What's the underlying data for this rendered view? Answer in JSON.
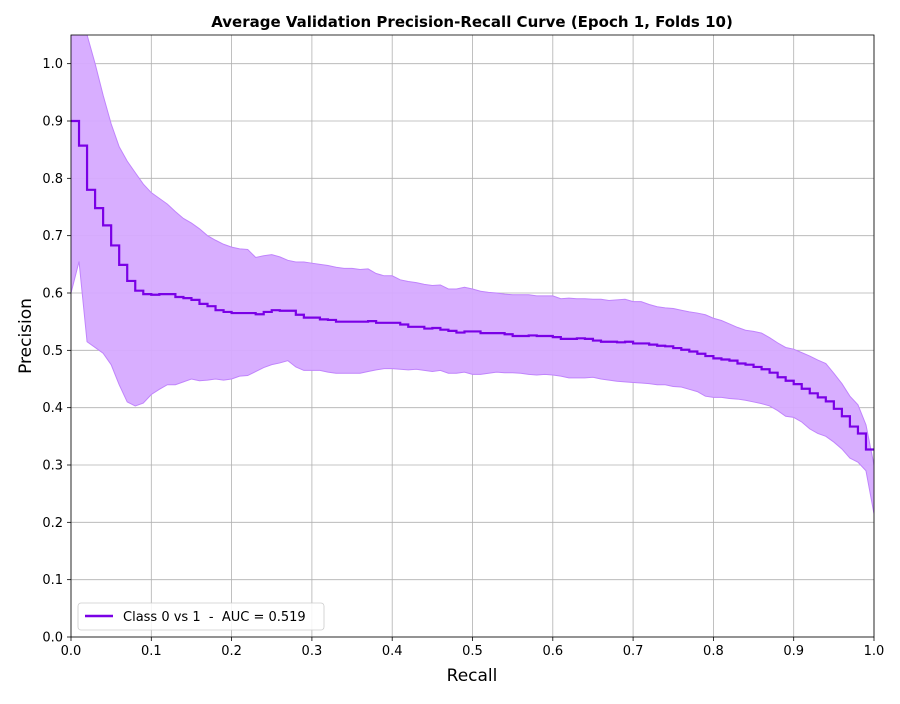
{
  "chart_data": {
    "type": "line",
    "title": "Average Validation Precision-Recall Curve (Epoch 1, Folds 10)",
    "xlabel": "Recall",
    "ylabel": "Precision",
    "xlim": [
      0.0,
      1.0
    ],
    "ylim": [
      0.0,
      1.05
    ],
    "xticks": [
      "0.0",
      "0.1",
      "0.2",
      "0.3",
      "0.4",
      "0.5",
      "0.6",
      "0.7",
      "0.8",
      "0.9",
      "1.0"
    ],
    "yticks": [
      "0.0",
      "0.1",
      "0.2",
      "0.3",
      "0.4",
      "0.5",
      "0.6",
      "0.7",
      "0.8",
      "0.9",
      "1.0"
    ],
    "grid": true,
    "legend_position": "lower-left",
    "series": [
      {
        "name": "Class 0 vs 1  -  AUC = 0.519",
        "color": "#7a00e6",
        "band_color": "#d6aaff",
        "band_edge_color": "#c084fc",
        "x": [
          0.0,
          0.01,
          0.02,
          0.03,
          0.04,
          0.05,
          0.06,
          0.07,
          0.08,
          0.09,
          0.1,
          0.11,
          0.12,
          0.13,
          0.14,
          0.15,
          0.16,
          0.17,
          0.18,
          0.19,
          0.2,
          0.21,
          0.22,
          0.23,
          0.24,
          0.25,
          0.26,
          0.27,
          0.28,
          0.29,
          0.3,
          0.31,
          0.32,
          0.33,
          0.34,
          0.35,
          0.36,
          0.37,
          0.38,
          0.39,
          0.4,
          0.41,
          0.42,
          0.43,
          0.44,
          0.45,
          0.46,
          0.47,
          0.48,
          0.49,
          0.5,
          0.51,
          0.52,
          0.53,
          0.54,
          0.55,
          0.56,
          0.57,
          0.58,
          0.59,
          0.6,
          0.61,
          0.62,
          0.63,
          0.64,
          0.65,
          0.66,
          0.67,
          0.68,
          0.69,
          0.7,
          0.71,
          0.72,
          0.73,
          0.74,
          0.75,
          0.76,
          0.77,
          0.78,
          0.79,
          0.8,
          0.81,
          0.82,
          0.83,
          0.84,
          0.85,
          0.86,
          0.87,
          0.88,
          0.89,
          0.9,
          0.91,
          0.92,
          0.93,
          0.94,
          0.95,
          0.96,
          0.97,
          0.98,
          0.99,
          1.0
        ],
        "y": [
          0.9,
          0.857,
          0.78,
          0.748,
          0.718,
          0.683,
          0.649,
          0.621,
          0.604,
          0.598,
          0.597,
          0.598,
          0.598,
          0.593,
          0.591,
          0.588,
          0.581,
          0.577,
          0.57,
          0.567,
          0.565,
          0.565,
          0.565,
          0.563,
          0.567,
          0.57,
          0.569,
          0.569,
          0.562,
          0.557,
          0.557,
          0.554,
          0.553,
          0.55,
          0.55,
          0.55,
          0.55,
          0.551,
          0.548,
          0.548,
          0.548,
          0.545,
          0.541,
          0.541,
          0.538,
          0.539,
          0.536,
          0.534,
          0.531,
          0.533,
          0.533,
          0.53,
          0.53,
          0.53,
          0.528,
          0.525,
          0.525,
          0.526,
          0.525,
          0.525,
          0.523,
          0.52,
          0.52,
          0.521,
          0.52,
          0.517,
          0.515,
          0.515,
          0.514,
          0.515,
          0.512,
          0.512,
          0.51,
          0.508,
          0.507,
          0.504,
          0.501,
          0.498,
          0.494,
          0.49,
          0.486,
          0.484,
          0.482,
          0.477,
          0.475,
          0.471,
          0.467,
          0.461,
          0.453,
          0.447,
          0.441,
          0.433,
          0.425,
          0.418,
          0.411,
          0.398,
          0.385,
          0.367,
          0.355,
          0.327,
          0.327
        ],
        "upper": [
          1.15,
          1.1,
          1.05,
          1.0,
          0.945,
          0.895,
          0.855,
          0.83,
          0.81,
          0.79,
          0.775,
          0.765,
          0.755,
          0.742,
          0.73,
          0.722,
          0.712,
          0.7,
          0.692,
          0.685,
          0.68,
          0.677,
          0.676,
          0.662,
          0.665,
          0.667,
          0.663,
          0.657,
          0.654,
          0.654,
          0.652,
          0.65,
          0.648,
          0.645,
          0.643,
          0.643,
          0.641,
          0.642,
          0.634,
          0.63,
          0.63,
          0.623,
          0.62,
          0.618,
          0.615,
          0.613,
          0.614,
          0.607,
          0.607,
          0.61,
          0.607,
          0.603,
          0.601,
          0.6,
          0.598,
          0.597,
          0.597,
          0.597,
          0.595,
          0.595,
          0.595,
          0.59,
          0.591,
          0.59,
          0.59,
          0.589,
          0.589,
          0.587,
          0.588,
          0.589,
          0.585,
          0.585,
          0.58,
          0.576,
          0.574,
          0.573,
          0.57,
          0.567,
          0.565,
          0.562,
          0.556,
          0.552,
          0.546,
          0.54,
          0.535,
          0.533,
          0.53,
          0.522,
          0.513,
          0.505,
          0.502,
          0.496,
          0.49,
          0.483,
          0.477,
          0.46,
          0.442,
          0.42,
          0.405,
          0.37,
          0.3
        ],
        "lower": [
          0.6,
          0.655,
          0.515,
          0.505,
          0.495,
          0.475,
          0.44,
          0.41,
          0.403,
          0.408,
          0.423,
          0.432,
          0.44,
          0.44,
          0.445,
          0.45,
          0.447,
          0.448,
          0.45,
          0.448,
          0.45,
          0.455,
          0.456,
          0.463,
          0.47,
          0.475,
          0.478,
          0.482,
          0.471,
          0.465,
          0.465,
          0.465,
          0.462,
          0.46,
          0.46,
          0.46,
          0.46,
          0.463,
          0.466,
          0.468,
          0.468,
          0.467,
          0.466,
          0.467,
          0.465,
          0.463,
          0.465,
          0.46,
          0.46,
          0.462,
          0.458,
          0.458,
          0.46,
          0.462,
          0.461,
          0.461,
          0.46,
          0.458,
          0.457,
          0.458,
          0.457,
          0.455,
          0.452,
          0.452,
          0.452,
          0.453,
          0.45,
          0.448,
          0.446,
          0.445,
          0.444,
          0.443,
          0.442,
          0.44,
          0.44,
          0.437,
          0.436,
          0.432,
          0.428,
          0.42,
          0.418,
          0.418,
          0.416,
          0.415,
          0.413,
          0.41,
          0.407,
          0.403,
          0.395,
          0.385,
          0.383,
          0.375,
          0.363,
          0.355,
          0.35,
          0.34,
          0.328,
          0.312,
          0.305,
          0.29,
          0.215
        ]
      }
    ]
  }
}
